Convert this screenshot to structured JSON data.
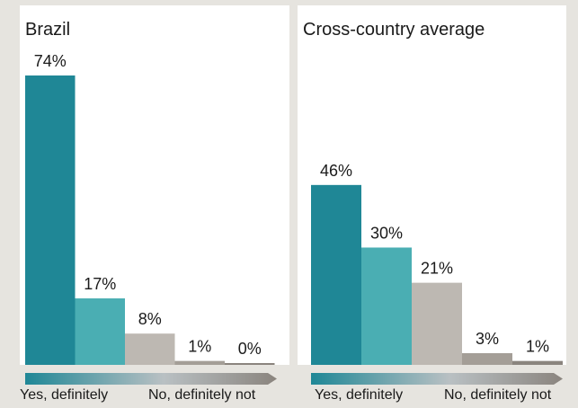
{
  "colors": {
    "bar_colors": [
      "#1f8796",
      "#4aaeb3",
      "#bdb8b2",
      "#a49e97",
      "#8a847e"
    ],
    "scale_start": "#1f8796",
    "scale_mid": "#b9c0c3",
    "scale_end": "#8a847e"
  },
  "scale_labels": {
    "left": "Yes, definitely",
    "right": "No, definitely not"
  },
  "chart_data": [
    {
      "type": "bar",
      "title": "Brazil",
      "categories": [
        "",
        "",
        "",
        "",
        ""
      ],
      "values": [
        74,
        17,
        8,
        1,
        0
      ],
      "data_labels": [
        "74%",
        "17%",
        "8%",
        "1%",
        "0%"
      ],
      "ylim": [
        0,
        74
      ],
      "grid": false,
      "legend": "none"
    },
    {
      "type": "bar",
      "title": "Cross-country average",
      "categories": [
        "",
        "",
        "",
        "",
        ""
      ],
      "values": [
        46,
        30,
        21,
        3,
        1
      ],
      "data_labels": [
        "46%",
        "30%",
        "21%",
        "3%",
        "1%"
      ],
      "ylim": [
        0,
        74
      ],
      "grid": false,
      "legend": "none"
    }
  ]
}
